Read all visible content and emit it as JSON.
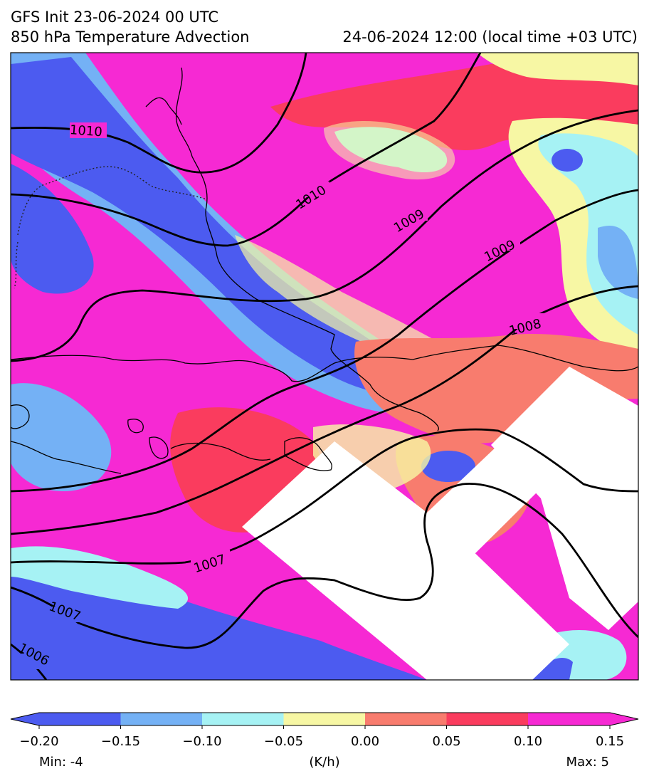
{
  "header": {
    "line1": "GFS Init 23-06-2024 00 UTC",
    "line2_left": "850 hPa Temperature Advection",
    "line2_right": "24-06-2024 12:00 (local time +03 UTC)"
  },
  "isobars": [
    {
      "label": "1010"
    },
    {
      "label": "1010"
    },
    {
      "label": "1009"
    },
    {
      "label": "1009"
    },
    {
      "label": "1008"
    },
    {
      "label": "1007"
    },
    {
      "label": "1007"
    },
    {
      "label": "1006"
    }
  ],
  "colorbar": {
    "colors": [
      "#4c5bf0",
      "#74b1f5",
      "#a6f2f4",
      "#f7f7a4",
      "#f87c6e",
      "#fa3c5e",
      "#f629d3"
    ],
    "ticks": [
      "−0.20",
      "−0.15",
      "−0.10",
      "−0.05",
      "0.00",
      "0.05",
      "0.10",
      "0.15"
    ],
    "unit": "(K/h)",
    "min_label": "Min: -4",
    "max_label": "Max: 5"
  }
}
